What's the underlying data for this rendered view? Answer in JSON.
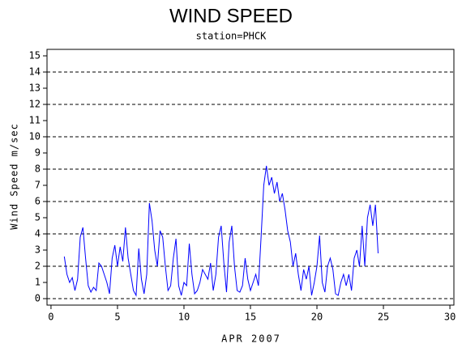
{
  "chart_data": {
    "type": "line",
    "title": "WIND SPEED",
    "subtitle": "station=PHCK",
    "x_label": "APR 2007",
    "y_label": "Wind Speed m/sec",
    "color": "#0000ff",
    "xlim": [
      -0.3,
      30.3
    ],
    "xticks": [
      0,
      5,
      10,
      15,
      20,
      25,
      30
    ],
    "ylim": [
      -0.4,
      15.4
    ],
    "yticks": [
      0,
      1,
      2,
      3,
      4,
      5,
      6,
      7,
      8,
      9,
      10,
      11,
      12,
      13,
      14,
      15
    ],
    "grid_lines": [
      0,
      2,
      4,
      6,
      8,
      10,
      12,
      14
    ],
    "x": [
      1.0,
      1.2,
      1.4,
      1.6,
      1.8,
      2.0,
      2.2,
      2.4,
      2.6,
      2.8,
      3.0,
      3.2,
      3.4,
      3.6,
      3.8,
      4.0,
      4.2,
      4.4,
      4.6,
      4.8,
      5.0,
      5.2,
      5.4,
      5.6,
      5.8,
      6.0,
      6.2,
      6.4,
      6.6,
      6.8,
      7.0,
      7.2,
      7.4,
      7.6,
      7.8,
      8.0,
      8.2,
      8.4,
      8.6,
      8.8,
      9.0,
      9.2,
      9.4,
      9.6,
      9.8,
      10.0,
      10.2,
      10.4,
      10.6,
      10.8,
      11.0,
      11.2,
      11.4,
      11.6,
      11.8,
      12.0,
      12.2,
      12.4,
      12.6,
      12.8,
      13.0,
      13.2,
      13.4,
      13.6,
      13.8,
      14.0,
      14.2,
      14.4,
      14.6,
      14.8,
      15.0,
      15.2,
      15.4,
      15.6,
      15.8,
      16.0,
      16.2,
      16.4,
      16.6,
      16.8,
      17.0,
      17.2,
      17.4,
      17.6,
      17.8,
      18.0,
      18.2,
      18.4,
      18.6,
      18.8,
      19.0,
      19.2,
      19.4,
      19.6,
      19.8,
      20.0,
      20.2,
      20.4,
      20.6,
      20.8,
      21.0,
      21.2,
      21.4,
      21.6,
      21.8,
      22.0,
      22.2,
      22.4,
      22.6,
      22.8,
      23.0,
      23.2,
      23.4,
      23.6,
      23.8,
      24.0,
      24.2,
      24.4,
      24.6
    ],
    "values": [
      2.6,
      1.5,
      1.0,
      1.3,
      0.5,
      1.2,
      3.8,
      4.4,
      2.5,
      0.8,
      0.4,
      0.7,
      0.5,
      2.2,
      2.0,
      1.5,
      1.0,
      0.3,
      2.5,
      3.3,
      2.0,
      3.2,
      2.3,
      4.4,
      2.5,
      1.5,
      0.5,
      0.2,
      3.1,
      1.2,
      0.3,
      1.5,
      5.9,
      4.8,
      3.0,
      2.0,
      4.2,
      3.8,
      2.0,
      0.5,
      0.8,
      2.5,
      3.7,
      0.8,
      0.2,
      1.0,
      0.8,
      3.4,
      1.5,
      0.3,
      0.5,
      1.0,
      1.8,
      1.5,
      1.2,
      2.2,
      0.5,
      1.5,
      3.8,
      4.5,
      2.2,
      0.4,
      3.5,
      4.5,
      2.0,
      0.5,
      0.4,
      0.8,
      2.5,
      1.2,
      0.5,
      1.0,
      1.5,
      0.8,
      3.8,
      7.0,
      8.2,
      7.0,
      7.5,
      6.5,
      7.2,
      6.0,
      6.5,
      5.5,
      4.2,
      3.5,
      2.0,
      2.8,
      1.5,
      0.5,
      1.8,
      1.2,
      2.0,
      0.2,
      1.0,
      2.0,
      3.9,
      1.0,
      0.4,
      2.0,
      2.5,
      1.8,
      0.3,
      0.2,
      1.0,
      1.5,
      0.8,
      1.5,
      0.5,
      2.5,
      3.0,
      2.0,
      4.5,
      2.0,
      5.0,
      5.8,
      4.5,
      5.8,
      2.8
    ]
  }
}
